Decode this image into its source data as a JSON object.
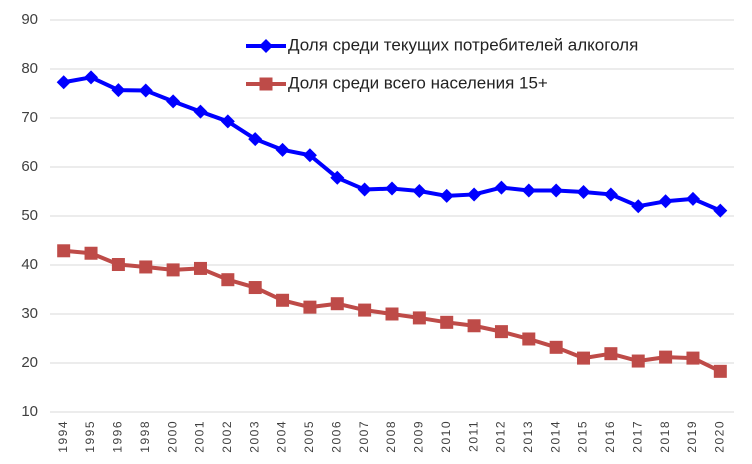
{
  "chart_data": {
    "type": "line",
    "categories": [
      "1994",
      "1995",
      "1996",
      "1998",
      "2000",
      "2001",
      "2002",
      "2003",
      "2004",
      "2005",
      "2006",
      "2007",
      "2008",
      "2009",
      "2010",
      "2011",
      "2012",
      "2013",
      "2014",
      "2015",
      "2016",
      "2017",
      "2018",
      "2019",
      "2020"
    ],
    "series": [
      {
        "name": "Доля среди текущих потребителей алкоголя",
        "color": "#0000ff",
        "marker": "diamond",
        "values": [
          77.3,
          78.3,
          75.7,
          75.6,
          73.4,
          71.3,
          69.3,
          65.7,
          63.5,
          62.4,
          57.8,
          55.4,
          55.6,
          55.1,
          54.1,
          54.4,
          55.8,
          55.2,
          55.2,
          54.9,
          54.4,
          52.0,
          53.0,
          53.5,
          51.1
        ]
      },
      {
        "name": "Доля среди всего населения 15+",
        "color": "#be4b48",
        "marker": "square",
        "values": [
          42.9,
          42.4,
          40.1,
          39.6,
          39.0,
          39.3,
          37.0,
          35.4,
          32.8,
          31.4,
          32.1,
          30.8,
          30.0,
          29.2,
          28.3,
          27.6,
          26.4,
          24.9,
          23.2,
          21.0,
          21.9,
          20.4,
          21.2,
          21.0,
          18.3
        ]
      }
    ],
    "ylim": [
      10,
      90
    ],
    "yticks": [
      10,
      20,
      30,
      40,
      50,
      60,
      70,
      80,
      90
    ],
    "grid": true,
    "legend": "top-right"
  }
}
